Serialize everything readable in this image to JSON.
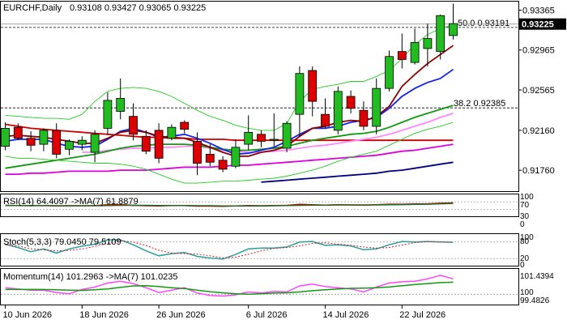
{
  "header": {
    "symbol": "EURCHF,Daily",
    "ohlc": "0.93108 0.93427 0.93065 0.93225"
  },
  "chart_data": [
    {
      "type": "candlestick",
      "symbol": "EURCHF",
      "timeframe": "Daily",
      "ylim": [
        0.9155,
        0.9345
      ],
      "yticks": [
        "0.93365",
        "0.92965",
        "0.92565",
        "0.92160",
        "0.91760"
      ],
      "last_price": "0.93225",
      "xticks": [
        "10 Jun 2026",
        "18 Jun 2026",
        "26 Jun 2026",
        "6 Jul 2026",
        "14 Jul 2026",
        "22 Jul 2026"
      ],
      "candles": [
        {
          "o": 0.92,
          "h": 0.9224,
          "l": 0.9196,
          "c": 0.9218
        },
        {
          "o": 0.9219,
          "h": 0.9223,
          "l": 0.9206,
          "c": 0.9208
        },
        {
          "o": 0.9208,
          "h": 0.9215,
          "l": 0.9195,
          "c": 0.9201
        },
        {
          "o": 0.9202,
          "h": 0.9218,
          "l": 0.9195,
          "c": 0.9216
        },
        {
          "o": 0.9216,
          "h": 0.9223,
          "l": 0.9188,
          "c": 0.9192
        },
        {
          "o": 0.9197,
          "h": 0.9207,
          "l": 0.9191,
          "c": 0.9205
        },
        {
          "o": 0.9202,
          "h": 0.921,
          "l": 0.9196,
          "c": 0.9206
        },
        {
          "o": 0.9194,
          "h": 0.9216,
          "l": 0.9184,
          "c": 0.9212
        },
        {
          "o": 0.9218,
          "h": 0.9254,
          "l": 0.9212,
          "c": 0.9246
        },
        {
          "o": 0.9235,
          "h": 0.9268,
          "l": 0.9227,
          "c": 0.9248
        },
        {
          "o": 0.923,
          "h": 0.9243,
          "l": 0.9206,
          "c": 0.9212
        },
        {
          "o": 0.921,
          "h": 0.9216,
          "l": 0.9192,
          "c": 0.9195
        },
        {
          "o": 0.9216,
          "h": 0.9223,
          "l": 0.9183,
          "c": 0.9188
        },
        {
          "o": 0.9208,
          "h": 0.9222,
          "l": 0.9206,
          "c": 0.9219
        },
        {
          "o": 0.9224,
          "h": 0.9226,
          "l": 0.9213,
          "c": 0.9217
        },
        {
          "o": 0.9205,
          "h": 0.9214,
          "l": 0.9171,
          "c": 0.9183
        },
        {
          "o": 0.9192,
          "h": 0.9202,
          "l": 0.918,
          "c": 0.9184
        },
        {
          "o": 0.9186,
          "h": 0.919,
          "l": 0.9174,
          "c": 0.9177
        },
        {
          "o": 0.918,
          "h": 0.9207,
          "l": 0.9178,
          "c": 0.9199
        },
        {
          "o": 0.9202,
          "h": 0.9231,
          "l": 0.9196,
          "c": 0.9214
        },
        {
          "o": 0.9212,
          "h": 0.9216,
          "l": 0.9199,
          "c": 0.9205
        },
        {
          "o": 0.9206,
          "h": 0.9233,
          "l": 0.92,
          "c": 0.9207
        },
        {
          "o": 0.9198,
          "h": 0.9225,
          "l": 0.9194,
          "c": 0.9223
        },
        {
          "o": 0.9232,
          "h": 0.928,
          "l": 0.921,
          "c": 0.9273
        },
        {
          "o": 0.9276,
          "h": 0.928,
          "l": 0.923,
          "c": 0.9245
        },
        {
          "o": 0.9232,
          "h": 0.9248,
          "l": 0.9218,
          "c": 0.922
        },
        {
          "o": 0.9216,
          "h": 0.926,
          "l": 0.9212,
          "c": 0.9255
        },
        {
          "o": 0.925,
          "h": 0.9256,
          "l": 0.9233,
          "c": 0.9238
        },
        {
          "o": 0.9236,
          "h": 0.9245,
          "l": 0.9216,
          "c": 0.922
        },
        {
          "o": 0.922,
          "h": 0.9268,
          "l": 0.9212,
          "c": 0.9258
        },
        {
          "o": 0.9258,
          "h": 0.9296,
          "l": 0.9255,
          "c": 0.929
        },
        {
          "o": 0.9295,
          "h": 0.9313,
          "l": 0.9278,
          "c": 0.9287
        },
        {
          "o": 0.9284,
          "h": 0.9318,
          "l": 0.9282,
          "c": 0.9304
        },
        {
          "o": 0.9298,
          "h": 0.9323,
          "l": 0.928,
          "c": 0.9308
        },
        {
          "o": 0.9295,
          "h": 0.9332,
          "l": 0.9287,
          "c": 0.9331
        },
        {
          "o": 0.9311,
          "h": 0.9343,
          "l": 0.9307,
          "c": 0.9323
        }
      ],
      "bull_color": "#22bb22",
      "bear_color": "#dd0000",
      "levels": [
        {
          "label": "50.0 0.93191",
          "value": 0.93191
        },
        {
          "label": "38.2 0.92385",
          "value": 0.92385
        }
      ],
      "lines": [
        {
          "name": "red-ma",
          "color": "#cc0000",
          "values": [
            0.9222,
            0.922,
            0.9218,
            0.9217,
            0.9216,
            0.9215,
            0.9214,
            0.9213,
            0.9212,
            0.9211,
            0.921,
            0.9209,
            0.9209,
            0.9208,
            0.9208,
            0.9207,
            0.9207,
            0.9207,
            0.9206,
            0.9206,
            0.9206,
            0.9206,
            0.9206,
            0.9206,
            0.9206,
            0.9206,
            0.9206,
            0.9206,
            0.9206,
            0.9206,
            0.9206,
            0.9206,
            0.9206,
            0.9206,
            0.9206,
            0.9206
          ]
        },
        {
          "name": "magenta-ma",
          "color": "#dd00dd",
          "values": [
            0.9172,
            0.9172,
            0.9173,
            0.9173,
            0.9174,
            0.9175,
            0.9175,
            0.9175,
            0.9175,
            0.9176,
            0.9176,
            0.9176,
            0.9177,
            0.9178,
            0.9179,
            0.9179,
            0.9179,
            0.918,
            0.9181,
            0.9181,
            0.9182,
            0.9183,
            0.9184,
            0.9185,
            0.9186,
            0.9187,
            0.9188,
            0.9189,
            0.919,
            0.9191,
            0.9193,
            0.9195,
            0.9196,
            0.9198,
            0.92,
            0.9202
          ]
        },
        {
          "name": "navy-ma",
          "color": "#000080",
          "values": [
            null,
            null,
            null,
            null,
            null,
            null,
            null,
            null,
            null,
            null,
            null,
            null,
            null,
            null,
            null,
            null,
            null,
            null,
            null,
            null,
            0.9164,
            0.9165,
            0.9166,
            0.9167,
            0.9168,
            0.9169,
            0.917,
            0.9171,
            0.9172,
            0.9173,
            0.9175,
            0.9176,
            0.9178,
            0.918,
            0.9182,
            0.9184
          ]
        },
        {
          "name": "pink-ma",
          "color": "#ff88ff",
          "values": [
            null,
            null,
            null,
            null,
            null,
            null,
            0.9194,
            0.9194,
            0.9196,
            0.9197,
            0.9198,
            0.9198,
            0.9199,
            0.9199,
            0.92,
            0.92,
            0.9198,
            0.9196,
            0.9195,
            0.9194,
            0.9194,
            0.9195,
            0.9196,
            0.9198,
            0.92,
            0.9201,
            0.9203,
            0.9205,
            0.9207,
            0.9209,
            0.9212,
            0.9216,
            0.922,
            0.9224,
            0.9229,
            0.9233
          ]
        },
        {
          "name": "green-ma",
          "color": "#119911",
          "values": [
            0.9178,
            0.918,
            0.9182,
            0.9184,
            0.9186,
            0.9188,
            0.919,
            0.9192,
            0.9195,
            0.9198,
            0.92,
            0.9201,
            0.9202,
            0.9202,
            0.9202,
            0.9201,
            0.9199,
            0.9197,
            0.9196,
            0.9196,
            0.9197,
            0.9198,
            0.92,
            0.9203,
            0.9206,
            0.9208,
            0.921,
            0.9212,
            0.9213,
            0.9215,
            0.9219,
            0.9224,
            0.9229,
            0.9233,
            0.9237,
            0.9241
          ]
        },
        {
          "name": "blue-ma",
          "color": "#1122ee",
          "values": [
            0.9205,
            0.9207,
            0.9207,
            0.9207,
            0.9203,
            0.92,
            0.9199,
            0.92,
            0.9207,
            0.9215,
            0.9218,
            0.9214,
            0.9209,
            0.921,
            0.9212,
            0.9208,
            0.9203,
            0.9197,
            0.9192,
            0.9193,
            0.9196,
            0.9199,
            0.9205,
            0.9212,
            0.9218,
            0.9218,
            0.922,
            0.9224,
            0.9226,
            0.9229,
            0.9238,
            0.925,
            0.9258,
            0.9264,
            0.9268,
            0.9277
          ]
        },
        {
          "name": "darkred-ma",
          "color": "#880000",
          "values": [
            0.921,
            0.9211,
            0.921,
            0.9209,
            0.9207,
            0.9205,
            0.9203,
            0.9203,
            0.9208,
            0.9214,
            0.9216,
            0.9214,
            0.921,
            0.9209,
            0.9208,
            0.9204,
            0.9199,
            0.9194,
            0.919,
            0.919,
            0.9194,
            0.9196,
            0.92,
            0.921,
            0.9218,
            0.922,
            0.9224,
            0.9226,
            0.9225,
            0.923,
            0.924,
            0.926,
            0.9272,
            0.9283,
            0.9292,
            0.9301
          ]
        },
        {
          "name": "band-upper",
          "color": "#22cc22",
          "values": [
            0.9231,
            0.923,
            0.9229,
            0.9228,
            0.9228,
            0.9227,
            0.9232,
            0.9245,
            0.9255,
            0.9258,
            0.9259,
            0.9258,
            0.9255,
            0.925,
            0.9243,
            0.9236,
            0.923,
            0.9226,
            0.9221,
            0.9218,
            0.9216,
            0.9216,
            0.9223,
            0.9245,
            0.9257,
            0.926,
            0.9262,
            0.9265,
            0.9265,
            0.927,
            0.9276,
            0.9288,
            0.9302,
            0.9312,
            0.9318,
            0.9322
          ]
        },
        {
          "name": "band-lower",
          "color": "#22cc22",
          "values": [
            0.919,
            0.9188,
            0.9188,
            0.9187,
            0.9186,
            0.9185,
            0.9184,
            0.9183,
            0.9183,
            0.9182,
            0.918,
            0.9177,
            0.9172,
            0.9167,
            0.9163,
            0.9163,
            0.9164,
            0.9165,
            0.9165,
            0.9166,
            0.9167,
            0.9168,
            0.917,
            0.9173,
            0.9176,
            0.918,
            0.9185,
            0.9189,
            0.9192,
            0.9195,
            0.9201,
            0.9207,
            0.9213,
            0.9217,
            0.922,
            0.9224
          ]
        }
      ]
    },
    {
      "type": "line",
      "label": "RSI(14) 64.4097 ->MA(7) 61.8879",
      "ylim": [
        0,
        100
      ],
      "yticks": [
        100,
        70,
        30,
        0
      ],
      "levels": [
        70,
        30
      ],
      "series": [
        {
          "color": "#cc0000",
          "values": [
            52,
            51,
            50,
            51,
            49,
            50,
            50,
            51,
            55,
            56,
            52,
            50,
            49,
            51,
            51,
            48,
            48,
            47,
            49,
            51,
            50,
            51,
            52,
            57,
            55,
            53,
            55,
            54,
            53,
            55,
            58,
            58,
            59,
            60,
            63,
            64.4
          ]
        },
        {
          "color": "#226622",
          "values": [
            51,
            51,
            51,
            51,
            50,
            50,
            50,
            50,
            51,
            52,
            52,
            52,
            51,
            51,
            51,
            50,
            50,
            49,
            49,
            49,
            49,
            50,
            51,
            52,
            53,
            53,
            54,
            54,
            54,
            54,
            55,
            56,
            57,
            58,
            60,
            61.9
          ]
        }
      ]
    },
    {
      "type": "line",
      "label": "Stoch(5,3,3) 79.0450 79.5109",
      "ylim": [
        0,
        100
      ],
      "yticks": [
        100,
        80,
        20,
        0
      ],
      "levels": [
        80,
        20
      ],
      "series": [
        {
          "color": "#2a9d9d",
          "values": [
            72,
            60,
            45,
            55,
            40,
            55,
            65,
            72,
            88,
            88,
            70,
            48,
            30,
            38,
            42,
            28,
            22,
            18,
            35,
            55,
            58,
            58,
            62,
            80,
            82,
            68,
            70,
            66,
            52,
            55,
            70,
            82,
            80,
            82,
            80,
            79.0
          ]
        },
        {
          "color": "#cc2222",
          "dashed": true,
          "values": [
            70,
            66,
            55,
            52,
            48,
            50,
            55,
            64,
            76,
            85,
            80,
            68,
            50,
            40,
            38,
            36,
            30,
            22,
            25,
            36,
            48,
            57,
            60,
            66,
            75,
            77,
            72,
            68,
            62,
            58,
            60,
            69,
            78,
            81,
            81,
            79.5
          ]
        }
      ]
    },
    {
      "type": "line",
      "label": "Momentum(14) 101.2963 ->MA(7) 101.0235",
      "ylim": [
        99.2,
        102.0
      ],
      "yticks": [
        "101.4394",
        "100",
        "99.4826"
      ],
      "levels": [
        100
      ],
      "series": [
        {
          "color": "#ff44ff",
          "values": [
            100.55,
            100.45,
            100.35,
            100.35,
            100.15,
            100.05,
            100.4,
            100.6,
            100.95,
            101.1,
            100.9,
            100.55,
            100.15,
            100.35,
            100.55,
            100.1,
            99.9,
            99.85,
            99.95,
            100.2,
            100.1,
            100.25,
            100.2,
            100.7,
            100.85,
            100.65,
            100.55,
            100.45,
            100.2,
            100.6,
            100.95,
            101.05,
            101.1,
            101.3,
            101.6,
            101.3
          ]
        },
        {
          "color": "#119911",
          "values": [
            100.4,
            100.4,
            100.4,
            100.4,
            100.38,
            100.35,
            100.33,
            100.38,
            100.45,
            100.58,
            100.7,
            100.72,
            100.65,
            100.55,
            100.48,
            100.35,
            100.22,
            100.12,
            100.05,
            100.0,
            100.05,
            100.1,
            100.12,
            100.2,
            100.3,
            100.38,
            100.45,
            100.5,
            100.52,
            100.55,
            100.62,
            100.72,
            100.82,
            100.9,
            100.98,
            101.02
          ]
        }
      ]
    }
  ]
}
